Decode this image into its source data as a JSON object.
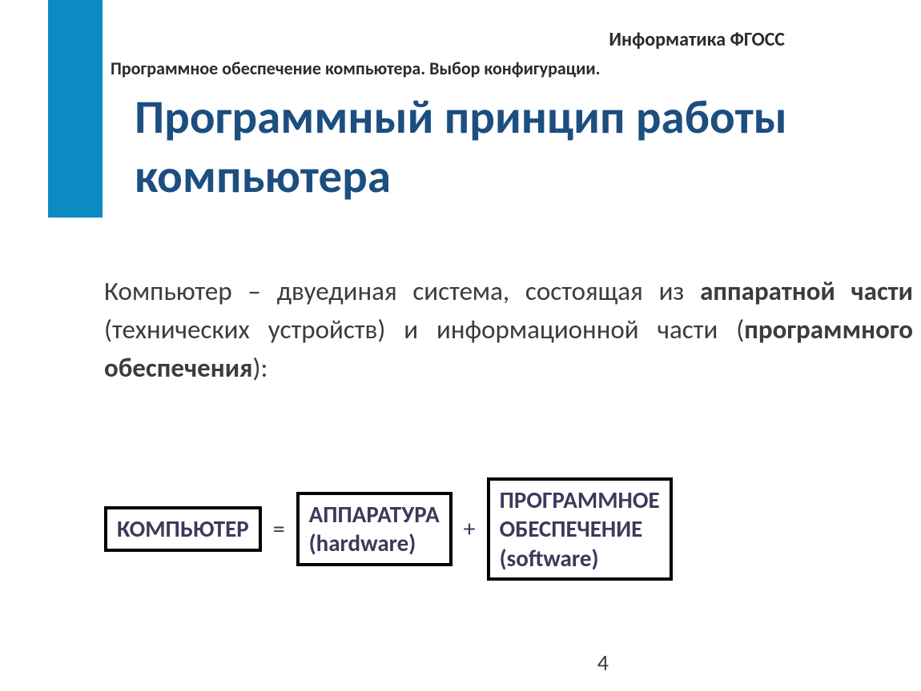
{
  "colors": {
    "accent_bar": "#0b8bc1",
    "title": "#1c4e80",
    "body_text": "#3c3c3c",
    "box_text": "#3b3a5a",
    "box_border": "#000000",
    "background": "#ffffff"
  },
  "fonts": {
    "family": "Calibri, Arial, sans-serif",
    "header_right_size_pt": 18,
    "sub_header_size_pt": 16,
    "title_size_pt": 44,
    "body_size_pt": 25,
    "box_size_pt": 22,
    "page_num_size_pt": 21
  },
  "header_right": "Информатика ФГОСС",
  "sub_header": "Программное обеспечение компьютера. Выбор конфигурации.",
  "title": "Программный принцип работы компьютера",
  "body": {
    "t1": "Компьютер – двуединая система, состоящая из ",
    "b1": "аппаратной части",
    "t2": " (технических устройств) и информационной части (",
    "b2": "программного обеспечения",
    "t3": "):"
  },
  "equation": {
    "box1": "КОМПЬЮТЕР",
    "op1": "=",
    "box2_line1": "АППАРАТУРА",
    "box2_line2": "(hardware)",
    "op2": "+",
    "box3_line1": "ПРОГРАММНОЕ",
    "box3_line2": "ОБЕСПЕЧЕНИЕ",
    "box3_line3": "(software)"
  },
  "page_number": "4"
}
